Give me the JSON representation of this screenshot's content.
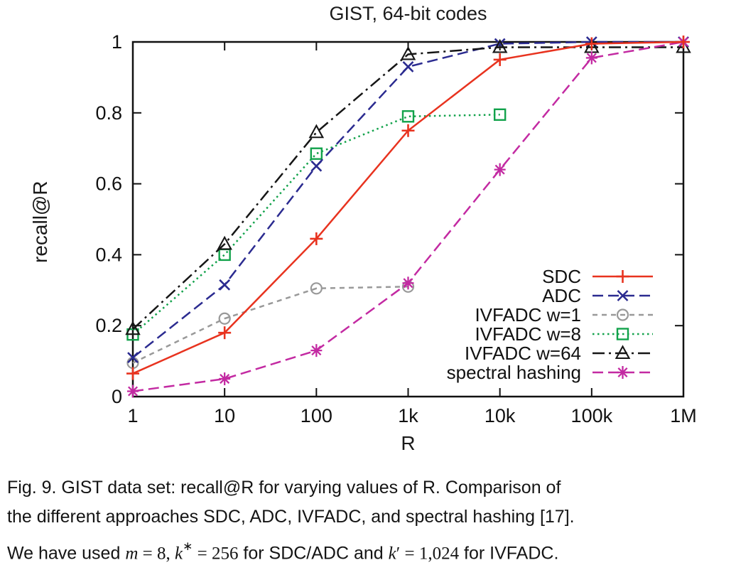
{
  "chart_data": {
    "type": "line",
    "title": "GIST, 64-bit codes",
    "xlabel": "R",
    "ylabel": "recall@R",
    "x_scale": "log10",
    "xlim": [
      1,
      1000000
    ],
    "ylim": [
      0,
      1
    ],
    "grid": false,
    "legend_position": "inside-right-bottom",
    "x_ticks": [
      {
        "v": 1,
        "label": "1"
      },
      {
        "v": 10,
        "label": "10"
      },
      {
        "v": 100,
        "label": "100"
      },
      {
        "v": 1000,
        "label": "1k"
      },
      {
        "v": 10000,
        "label": "10k"
      },
      {
        "v": 100000,
        "label": "100k"
      },
      {
        "v": 1000000,
        "label": "1M"
      }
    ],
    "y_ticks": [
      {
        "v": 0,
        "label": "0"
      },
      {
        "v": 0.2,
        "label": "0.2"
      },
      {
        "v": 0.4,
        "label": "0.4"
      },
      {
        "v": 0.6,
        "label": "0.6"
      },
      {
        "v": 0.8,
        "label": "0.8"
      },
      {
        "v": 1,
        "label": "1"
      }
    ],
    "series": [
      {
        "name": "SDC",
        "color": "#e8331f",
        "marker": "plus",
        "dash": "solid",
        "points": [
          [
            1,
            0.065
          ],
          [
            10,
            0.18
          ],
          [
            100,
            0.445
          ],
          [
            1000,
            0.75
          ],
          [
            10000,
            0.95
          ],
          [
            100000,
            0.995
          ],
          [
            1000000,
            1.0
          ]
        ]
      },
      {
        "name": "ADC",
        "color": "#2b2b90",
        "marker": "cross",
        "dash": "dash",
        "points": [
          [
            1,
            0.11
          ],
          [
            10,
            0.315
          ],
          [
            100,
            0.65
          ],
          [
            1000,
            0.93
          ],
          [
            10000,
            0.995
          ],
          [
            100000,
            1.0
          ],
          [
            1000000,
            1.0
          ]
        ]
      },
      {
        "name": "IVFADC w=1",
        "color": "#999999",
        "marker": "circle",
        "dash": "shortdash",
        "points": [
          [
            1,
            0.095
          ],
          [
            10,
            0.22
          ],
          [
            100,
            0.305
          ],
          [
            1000,
            0.31
          ]
        ]
      },
      {
        "name": "IVFADC w=8",
        "color": "#12a24b",
        "marker": "square",
        "dash": "dot",
        "points": [
          [
            1,
            0.175
          ],
          [
            10,
            0.4
          ],
          [
            100,
            0.685
          ],
          [
            1000,
            0.79
          ],
          [
            10000,
            0.795
          ]
        ]
      },
      {
        "name": "IVFADC w=64",
        "color": "#161616",
        "marker": "triangle",
        "dash": "dashdot",
        "points": [
          [
            1,
            0.19
          ],
          [
            10,
            0.43
          ],
          [
            100,
            0.745
          ],
          [
            1000,
            0.965
          ],
          [
            10000,
            0.985
          ],
          [
            100000,
            0.985
          ],
          [
            1000000,
            0.985
          ]
        ]
      },
      {
        "name": "spectral hashing",
        "color": "#c32aa2",
        "marker": "star",
        "dash": "dash",
        "points": [
          [
            1,
            0.015
          ],
          [
            10,
            0.05
          ],
          [
            100,
            0.13
          ],
          [
            1000,
            0.32
          ],
          [
            10000,
            0.64
          ],
          [
            100000,
            0.955
          ],
          [
            1000000,
            1.0
          ]
        ]
      }
    ]
  },
  "caption": {
    "lines": [
      [
        {
          "t": "Fig. 9. GIST data set: recall@R for varying values of R. Comparison of"
        }
      ],
      [
        {
          "t": "the different approaches SDC, ADC, IVFADC, and spectral hashing [17]."
        }
      ],
      [
        {
          "t": "We have used "
        },
        {
          "t": "m",
          "c": "var"
        },
        {
          "t": " = 8, ",
          "c": "math"
        },
        {
          "t": "k",
          "c": "var"
        },
        {
          "t": "∗",
          "c": "sup"
        },
        {
          "t": " = 256",
          "c": "math"
        },
        {
          "t": " for SDC/ADC and "
        },
        {
          "t": "k",
          "c": "var"
        },
        {
          "t": "′",
          "c": "math"
        },
        {
          "t": " = 1,024",
          "c": "math"
        },
        {
          "t": " for IVFADC."
        }
      ]
    ]
  }
}
